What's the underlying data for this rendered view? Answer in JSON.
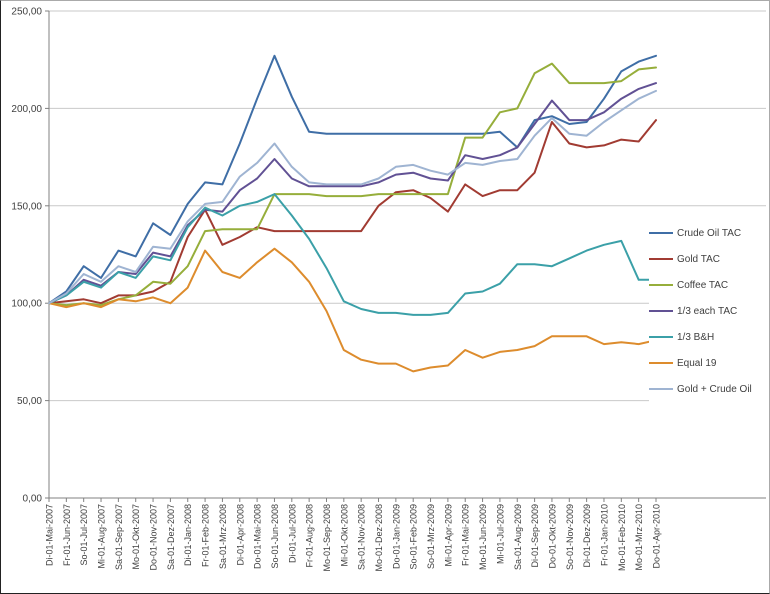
{
  "chart_data": {
    "type": "line",
    "title": "",
    "xlabel": "",
    "ylabel": "",
    "y_min": 0,
    "y_max": 250,
    "y_tick_step": 50,
    "y_tick_labels": [
      "0,00",
      "50,00",
      "100,00",
      "150,00",
      "200,00",
      "250,00"
    ],
    "grid": true,
    "legend_position": "right",
    "x_labels": [
      "Di-01-Mai-2007",
      "Fr-01-Jun-2007",
      "So-01-Jul-2007",
      "Mi-01-Aug-2007",
      "Sa-01-Sep-2007",
      "Mo-01-Okt-2007",
      "Do-01-Nov-2007",
      "Sa-01-Dez-2007",
      "Di-01-Jan-2008",
      "Fr-01-Feb-2008",
      "Sa-01-Mrz-2008",
      "Di-01-Apr-2008",
      "Do-01-Mai-2008",
      "So-01-Jun-2008",
      "Di-01-Jul-2008",
      "Fr-01-Aug-2008",
      "Mo-01-Sep-2008",
      "Mi-01-Okt-2008",
      "Sa-01-Nov-2008",
      "Mo-01-Dez-2008",
      "Do-01-Jan-2009",
      "So-01-Feb-2009",
      "So-01-Mrz-2009",
      "Mi-01-Apr-2009",
      "Fr-01-Mai-2009",
      "Mo-01-Jun-2009",
      "Mi-01-Jul-2009",
      "Sa-01-Aug-2009",
      "Di-01-Sep-2009",
      "Do-01-Okt-2009",
      "So-01-Nov-2009",
      "Di-01-Dez-2009",
      "Fr-01-Jan-2010",
      "Mo-01-Feb-2010",
      "Mo-01-Mrz-2010",
      "Do-01-Apr-2010"
    ],
    "series": [
      {
        "name": "Crude Oil TAC",
        "color": "#3F6EA6",
        "values": [
          100,
          106,
          119,
          113,
          127,
          124,
          141,
          135,
          151,
          162,
          161,
          182,
          205,
          227,
          206,
          188,
          187,
          187,
          187,
          187,
          187,
          187,
          187,
          187,
          187,
          187,
          188,
          180,
          194,
          196,
          192,
          193,
          205,
          219,
          224,
          227
        ]
      },
      {
        "name": "Gold TAC",
        "color": "#A13B32",
        "values": [
          100,
          101,
          102,
          100,
          104,
          104,
          106,
          111,
          134,
          148,
          130,
          134,
          139,
          137,
          137,
          137,
          137,
          137,
          137,
          150,
          157,
          158,
          154,
          147,
          161,
          155,
          158,
          158,
          167,
          193,
          182,
          180,
          181,
          184,
          183,
          194
        ]
      },
      {
        "name": "Coffee TAC",
        "color": "#96AE3B",
        "values": [
          100,
          99,
          100,
          99,
          102,
          104,
          111,
          110,
          119,
          137,
          138,
          138,
          138,
          156,
          156,
          156,
          155,
          155,
          155,
          156,
          156,
          156,
          156,
          156,
          185,
          185,
          198,
          200,
          218,
          223,
          213,
          213,
          213,
          214,
          220,
          221
        ]
      },
      {
        "name": "1/3 each TAC",
        "color": "#615194",
        "values": [
          100,
          104,
          112,
          109,
          116,
          115,
          126,
          124,
          140,
          148,
          147,
          158,
          164,
          174,
          164,
          160,
          160,
          160,
          160,
          162,
          166,
          167,
          164,
          163,
          176,
          174,
          176,
          180,
          192,
          204,
          194,
          194,
          198,
          205,
          210,
          213
        ]
      },
      {
        "name": "1/3 B&H",
        "color": "#3BA0A8",
        "values": [
          100,
          104,
          111,
          108,
          116,
          113,
          124,
          122,
          139,
          149,
          145,
          150,
          152,
          156,
          145,
          133,
          118,
          101,
          97,
          95,
          95,
          94,
          94,
          95,
          105,
          106,
          110,
          120,
          120,
          119,
          123,
          127,
          130,
          132,
          112,
          112
        ]
      },
      {
        "name": "Equal 19",
        "color": "#DD8C2D",
        "values": [
          100,
          98,
          100,
          98,
          102,
          101,
          103,
          100,
          108,
          127,
          116,
          113,
          121,
          128,
          121,
          111,
          96,
          76,
          71,
          69,
          69,
          65,
          67,
          68,
          76,
          72,
          75,
          76,
          78,
          83,
          83,
          83,
          79,
          80,
          79,
          81
        ]
      },
      {
        "name": "Gold + Crude Oil",
        "color": "#9FB4D2",
        "values": [
          100,
          105,
          115,
          111,
          119,
          116,
          129,
          128,
          142,
          151,
          152,
          165,
          172,
          182,
          170,
          162,
          161,
          161,
          161,
          164,
          170,
          171,
          168,
          166,
          172,
          171,
          173,
          174,
          186,
          195,
          187,
          186,
          193,
          199,
          205,
          209
        ]
      }
    ]
  }
}
